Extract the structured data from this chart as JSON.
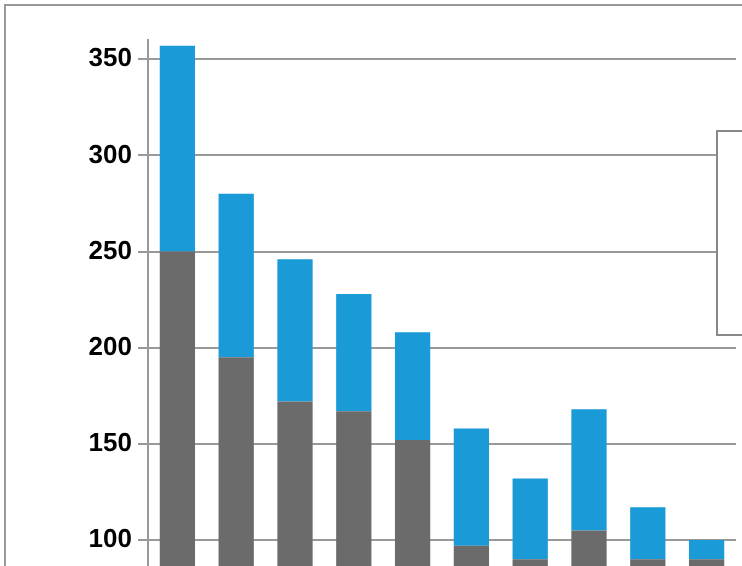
{
  "chart_data": {
    "type": "bar",
    "stacked": true,
    "categories": [
      null,
      null,
      null,
      null,
      null,
      null,
      null,
      null,
      null,
      null
    ],
    "series": [
      {
        "color": "#6b6b6b",
        "values": [
          250,
          195,
          172,
          167,
          152,
          97,
          90,
          105,
          90,
          90
        ]
      },
      {
        "color": "#1a9ad6",
        "values": [
          107,
          85,
          74,
          61,
          56,
          61,
          42,
          63,
          27,
          10
        ]
      }
    ],
    "ylim": [
      0,
      360
    ],
    "yticks": [
      100,
      150,
      200,
      250,
      300,
      350
    ],
    "grid": "y"
  }
}
